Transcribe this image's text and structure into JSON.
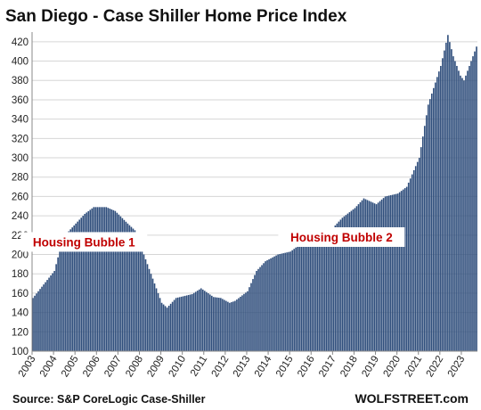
{
  "chart_data": {
    "type": "bar",
    "title": "San Diego - Case Shiller Home Price Index",
    "source": "Source: S&P CoreLogic Case-Shiller",
    "brand": "WOLFSTREET.com",
    "ylim": [
      100,
      430
    ],
    "yticks": [
      100,
      120,
      140,
      160,
      180,
      200,
      220,
      240,
      260,
      280,
      300,
      320,
      340,
      360,
      380,
      400,
      420
    ],
    "x_range": [
      "2003-01",
      "2023-09"
    ],
    "xtick_labels": [
      "2003",
      "2004",
      "2005",
      "2006",
      "2007",
      "2008",
      "2009",
      "2010",
      "2011",
      "2012",
      "2013",
      "2014",
      "2015",
      "2016",
      "2017",
      "2018",
      "2019",
      "2020",
      "2021",
      "2022",
      "2023"
    ],
    "grid": "horizontal",
    "bar_color": "#2e4d7b",
    "anchors": [
      [
        "2003-01",
        155
      ],
      [
        "2004-01",
        183
      ],
      [
        "2004-06",
        218
      ],
      [
        "2005-01",
        232
      ],
      [
        "2005-06",
        242
      ],
      [
        "2005-11",
        249
      ],
      [
        "2006-06",
        249
      ],
      [
        "2006-11",
        245
      ],
      [
        "2007-06",
        232
      ],
      [
        "2007-10",
        225
      ],
      [
        "2008-06",
        185
      ],
      [
        "2009-01",
        150
      ],
      [
        "2009-04",
        145
      ],
      [
        "2009-09",
        155
      ],
      [
        "2010-06",
        159
      ],
      [
        "2010-11",
        165
      ],
      [
        "2011-06",
        156
      ],
      [
        "2011-10",
        155
      ],
      [
        "2012-03",
        150
      ],
      [
        "2012-06",
        152
      ],
      [
        "2013-01",
        162
      ],
      [
        "2013-06",
        183
      ],
      [
        "2013-11",
        193
      ],
      [
        "2014-06",
        200
      ],
      [
        "2015-01",
        203
      ],
      [
        "2015-06",
        210
      ],
      [
        "2016-01",
        216
      ],
      [
        "2016-06",
        222
      ],
      [
        "2017-01",
        228
      ],
      [
        "2017-06",
        238
      ],
      [
        "2018-01",
        248
      ],
      [
        "2018-06",
        258
      ],
      [
        "2019-01",
        252
      ],
      [
        "2019-06",
        260
      ],
      [
        "2020-01",
        263
      ],
      [
        "2020-06",
        270
      ],
      [
        "2021-01",
        300
      ],
      [
        "2021-06",
        355
      ],
      [
        "2022-01",
        395
      ],
      [
        "2022-05",
        427
      ],
      [
        "2022-08",
        405
      ],
      [
        "2022-12",
        385
      ],
      [
        "2023-02",
        380
      ],
      [
        "2023-06",
        400
      ],
      [
        "2023-09",
        415
      ]
    ],
    "annotations": [
      {
        "text": "Housing Bubble 1",
        "at": "2005-06",
        "y": 213
      },
      {
        "text": "Housing Bubble 2",
        "at": "2017-06",
        "y": 218
      }
    ]
  }
}
